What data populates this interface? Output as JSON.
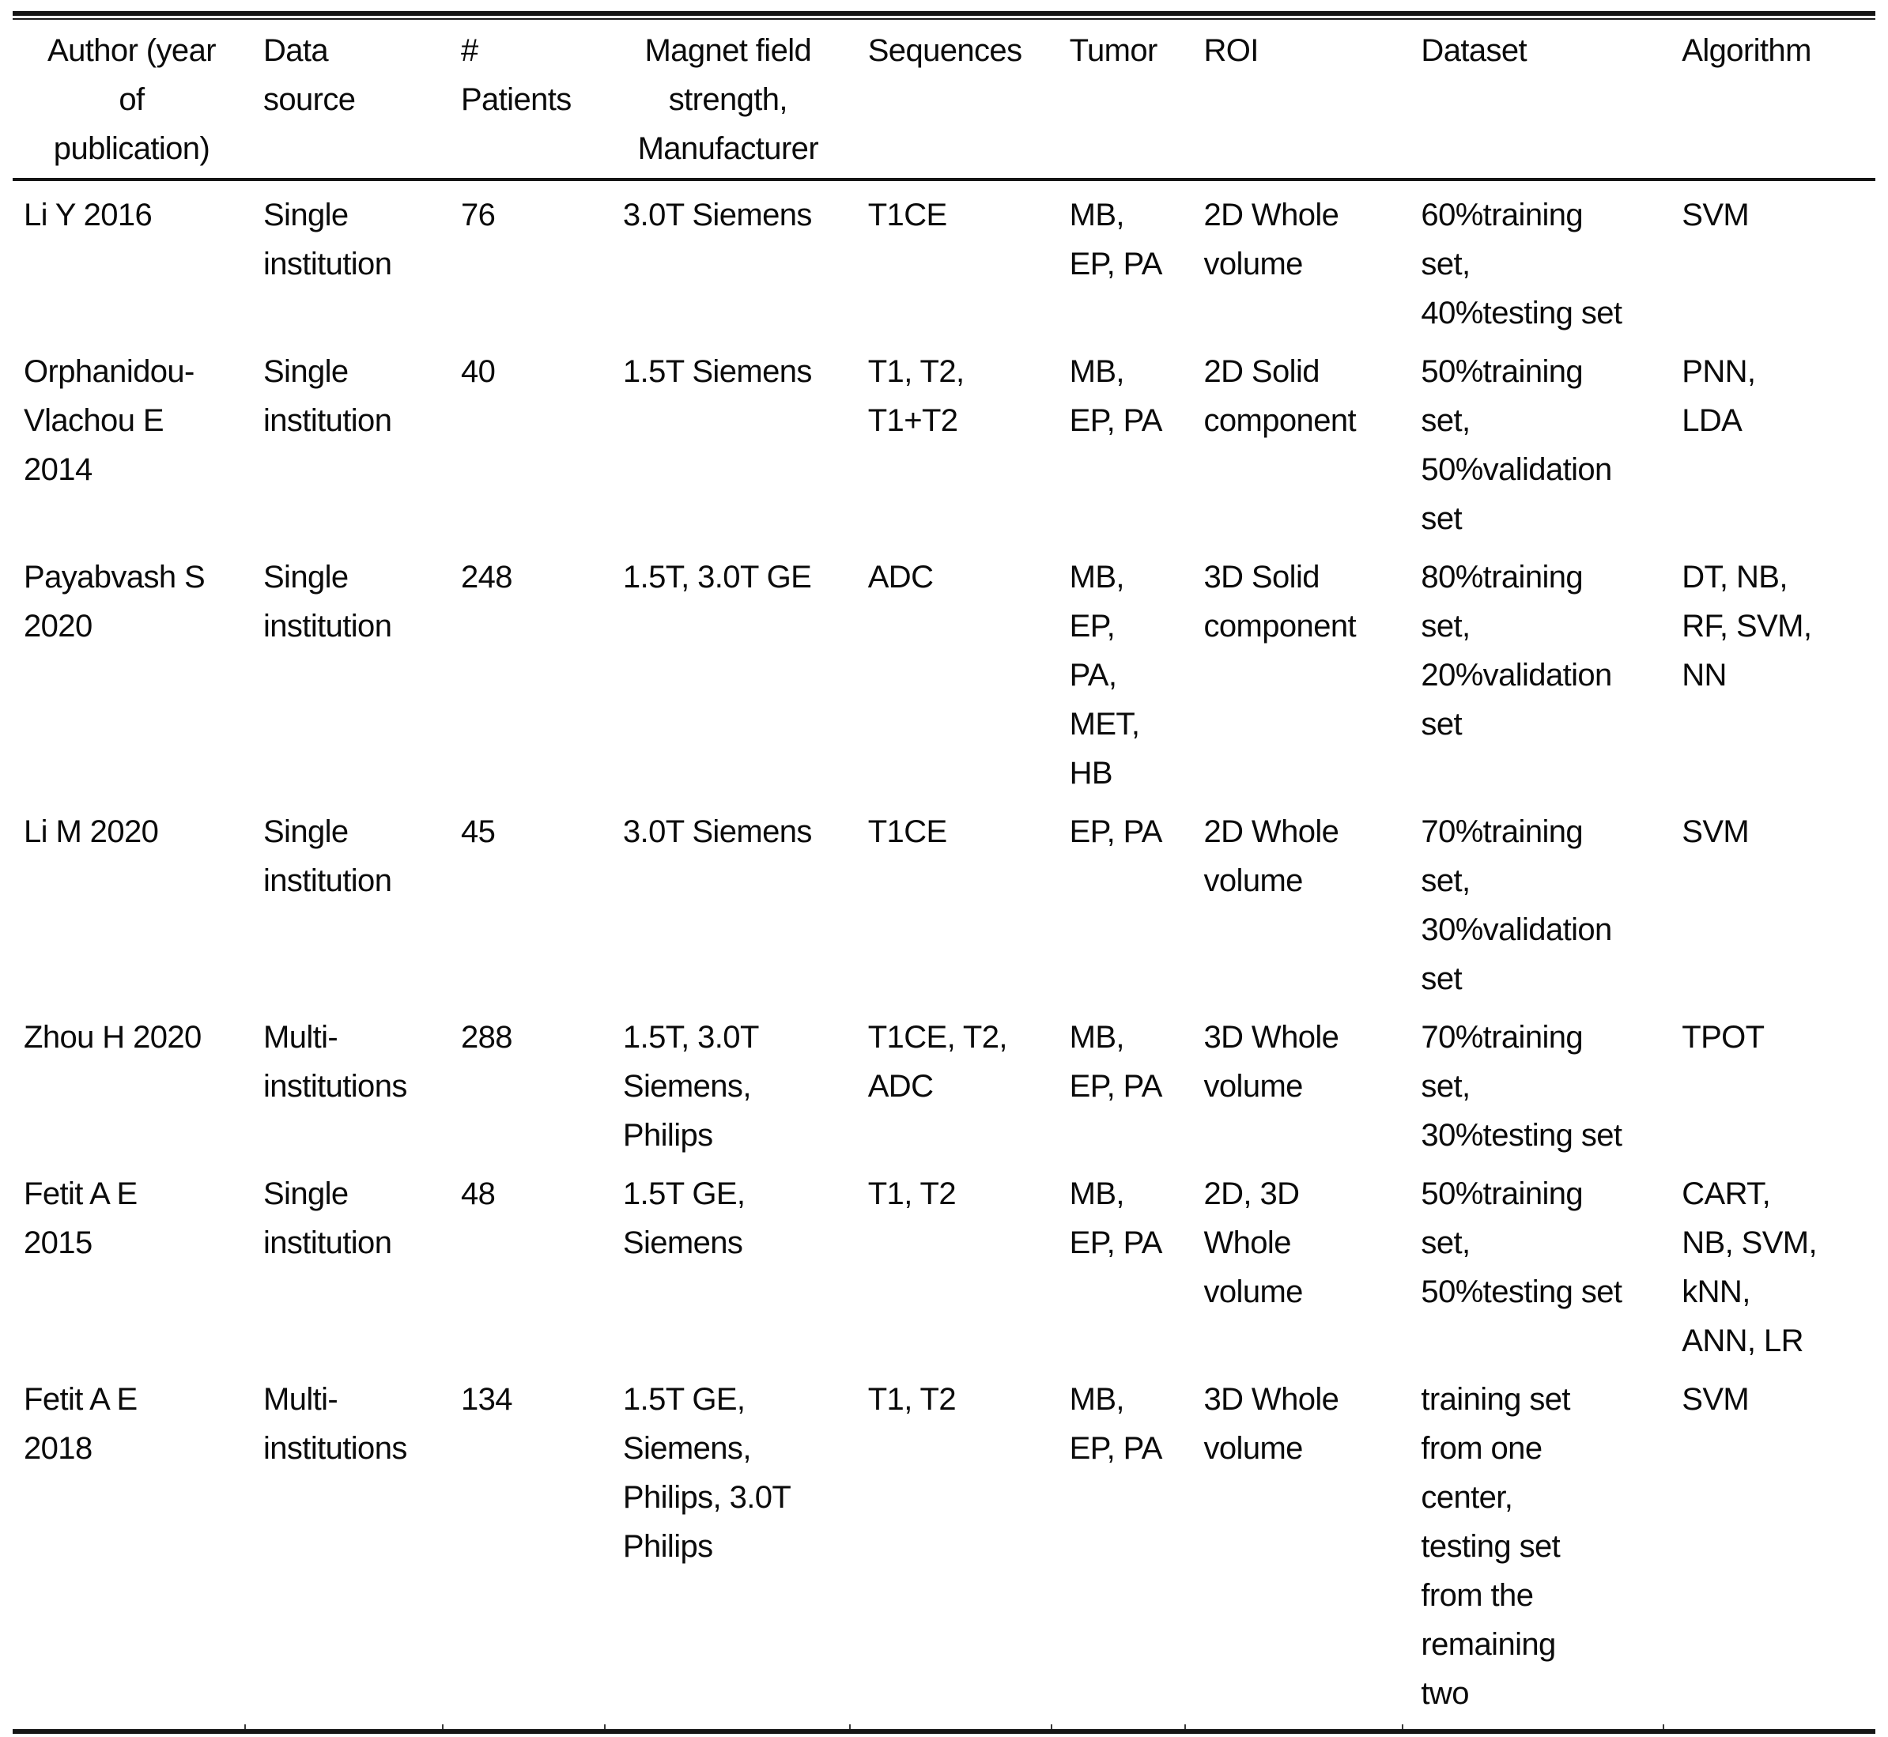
{
  "table": {
    "columns": [
      {
        "label": "Author (year\nof\npublication)"
      },
      {
        "label": "Data\nsource"
      },
      {
        "label": "#\nPatients"
      },
      {
        "label": "Magnet field\nstrength,\nManufacturer"
      },
      {
        "label": "Sequences"
      },
      {
        "label": "Tumor"
      },
      {
        "label": "ROI"
      },
      {
        "label": "Dataset"
      },
      {
        "label": "Algorithm"
      }
    ],
    "rows": [
      {
        "author": "Li Y 2016",
        "source": "Single\ninstitution",
        "patients": "76",
        "magnet": "3.0T Siemens",
        "sequences": "T1CE",
        "tumor": "MB,\nEP, PA",
        "roi": "2D Whole\nvolume",
        "dataset": "60%training\nset,\n40%testing set",
        "algorithm": "SVM"
      },
      {
        "author": "Orphanidou-\nVlachou E\n2014",
        "source": "Single\ninstitution",
        "patients": "40",
        "magnet": "1.5T Siemens",
        "sequences": "T1, T2,\nT1+T2",
        "tumor": "MB,\nEP, PA",
        "roi": "2D Solid\ncomponent",
        "dataset": "50%training\nset,\n50%validation\nset",
        "algorithm": "PNN,\nLDA"
      },
      {
        "author": "Payabvash S\n2020",
        "source": "Single\ninstitution",
        "patients": "248",
        "magnet": "1.5T, 3.0T GE",
        "sequences": "ADC",
        "tumor": "MB,\nEP,\nPA,\nMET,\nHB",
        "roi": "3D Solid\ncomponent",
        "dataset": "80%training\nset,\n20%validation\nset",
        "algorithm": "DT, NB,\nRF, SVM,\nNN"
      },
      {
        "author": "Li M 2020",
        "source": "Single\ninstitution",
        "patients": "45",
        "magnet": "3.0T Siemens",
        "sequences": "T1CE",
        "tumor": "EP, PA",
        "roi": "2D Whole\nvolume",
        "dataset": "70%training\nset,\n30%validation\nset",
        "algorithm": "SVM"
      },
      {
        "author": "Zhou H 2020",
        "source": "Multi-\ninstitutions",
        "patients": "288",
        "magnet": "1.5T, 3.0T\nSiemens,\nPhilips",
        "sequences": "T1CE, T2,\nADC",
        "tumor": "MB,\nEP, PA",
        "roi": "3D Whole\nvolume",
        "dataset": "70%training\nset,\n30%testing set",
        "algorithm": "TPOT"
      },
      {
        "author": "Fetit A E\n2015",
        "source": "Single\ninstitution",
        "patients": "48",
        "magnet": "1.5T GE,\nSiemens",
        "sequences": "T1, T2",
        "tumor": "MB,\nEP, PA",
        "roi": "2D, 3D\nWhole\nvolume",
        "dataset": "50%training\nset,\n50%testing set",
        "algorithm": "CART,\nNB, SVM,\nkNN,\nANN, LR"
      },
      {
        "author": "Fetit A E\n2018",
        "source": "Multi-\ninstitutions",
        "patients": "134",
        "magnet": "1.5T GE,\nSiemens,\nPhilips, 3.0T\nPhilips",
        "sequences": "T1, T2",
        "tumor": "MB,\nEP, PA",
        "roi": "3D Whole\nvolume",
        "dataset": "training set\nfrom one\ncenter,\ntesting set\nfrom the\nremaining\ntwo",
        "algorithm": "SVM"
      }
    ]
  }
}
